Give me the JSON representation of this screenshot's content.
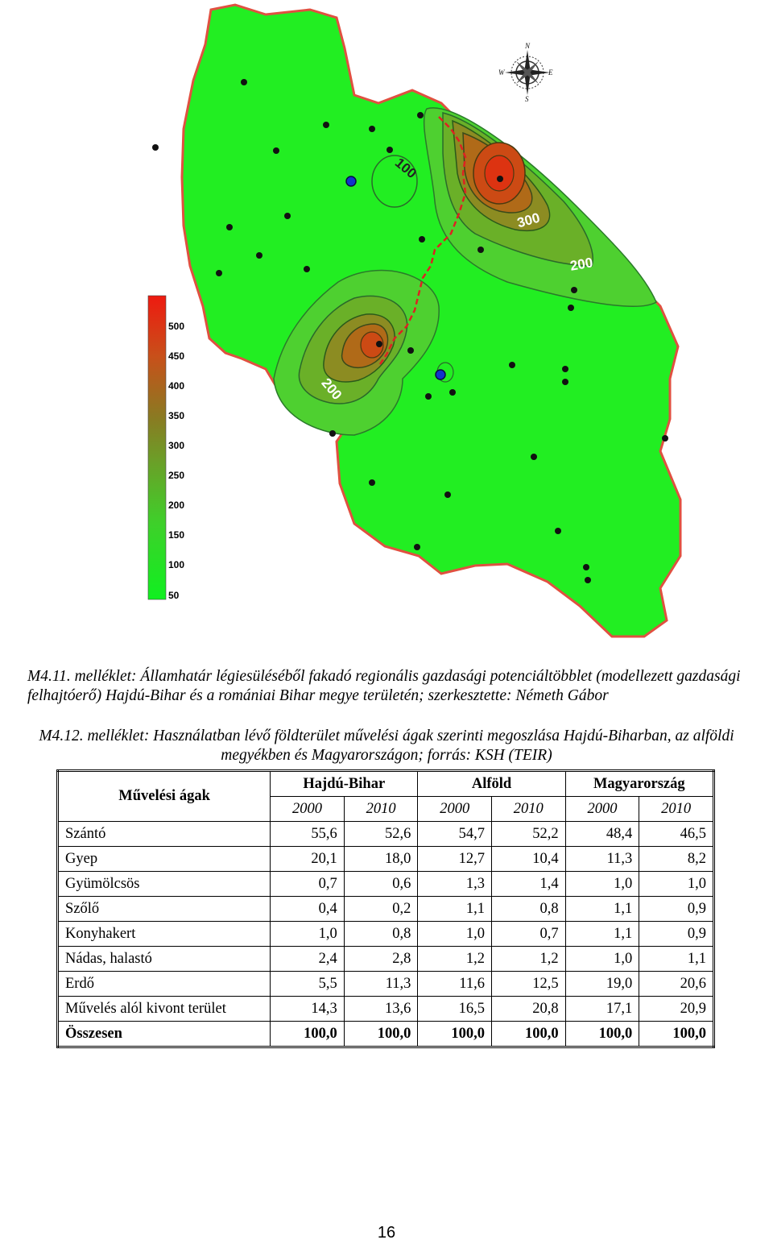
{
  "map": {
    "legend_values": [
      "500",
      "450",
      "400",
      "350",
      "300",
      "250",
      "200",
      "150",
      "100",
      "50"
    ],
    "contour_labels": [
      "100",
      "300",
      "200",
      "200"
    ],
    "compass": {
      "north": "N",
      "south": "S",
      "east": "E",
      "west": "W"
    },
    "colors": {
      "land": "#22ee22",
      "hotspot": "#cc3311",
      "border": "#dd2222"
    }
  },
  "captions": {
    "figure_1": "M4.11. melléklet: Államhatár légiesüléséből fakadó regionális gazdasági potenciáltöbblet (modellezett gazdasági felhajtóerő) Hajdú-Bihar és a romániai Bihar megye területén; szerkesztette: Németh Gábor",
    "table_1": "M4.12. melléklet: Használatban lévő földterület művelési ágak szerinti megoszlása Hajdú-Biharban, az alföldi megyékben és Magyarországon; forrás: KSH (TEIR)"
  },
  "table": {
    "row_header": "Művelési ágak",
    "groups": [
      "Hajdú-Bihar",
      "Alföld",
      "Magyarország"
    ],
    "years": [
      "2000",
      "2010",
      "2000",
      "2010",
      "2000",
      "2010"
    ],
    "rows": [
      {
        "label": "Szántó",
        "values": [
          "55,6",
          "52,6",
          "54,7",
          "52,2",
          "48,4",
          "46,5"
        ]
      },
      {
        "label": "Gyep",
        "values": [
          "20,1",
          "18,0",
          "12,7",
          "10,4",
          "11,3",
          "8,2"
        ]
      },
      {
        "label": "Gyümölcsös",
        "values": [
          "0,7",
          "0,6",
          "1,3",
          "1,4",
          "1,0",
          "1,0"
        ]
      },
      {
        "label": "Szőlő",
        "values": [
          "0,4",
          "0,2",
          "1,1",
          "0,8",
          "1,1",
          "0,9"
        ]
      },
      {
        "label": "Konyhakert",
        "values": [
          "1,0",
          "0,8",
          "1,0",
          "0,7",
          "1,1",
          "0,9"
        ]
      },
      {
        "label": "Nádas, halastó",
        "values": [
          "2,4",
          "2,8",
          "1,2",
          "1,2",
          "1,0",
          "1,1"
        ]
      },
      {
        "label": "Erdő",
        "values": [
          "5,5",
          "11,3",
          "11,6",
          "12,5",
          "19,0",
          "20,6"
        ]
      },
      {
        "label": "Művelés alól kivont terület",
        "values": [
          "14,3",
          "13,6",
          "16,5",
          "20,8",
          "17,1",
          "20,9"
        ]
      },
      {
        "label": "Összesen",
        "values": [
          "100,0",
          "100,0",
          "100,0",
          "100,0",
          "100,0",
          "100,0"
        ]
      }
    ]
  },
  "page_number": "16"
}
